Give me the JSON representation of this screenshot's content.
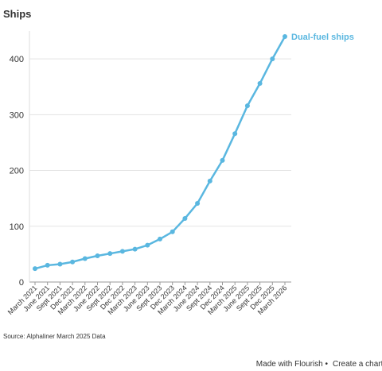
{
  "chart_data": {
    "type": "line",
    "title": "Ships",
    "categories": [
      "March 2021",
      "June 2021",
      "Sept 2021",
      "Dec 2021",
      "March 2022",
      "June 2022",
      "Sept 2022",
      "Dec 2022",
      "March 2023",
      "June 2023",
      "Sept 2023",
      "Dec 2023",
      "March 2024",
      "June 2024",
      "Sept 2024",
      "Dec 2024",
      "March 2025",
      "June 2025",
      "Sept 2025",
      "Dec 2025",
      "March 2026"
    ],
    "series": [
      {
        "name": "Dual-fuel ships",
        "color": "#5ab7e0",
        "values": [
          24,
          30,
          32,
          36,
          42,
          47,
          51,
          55,
          59,
          66,
          77,
          90,
          114,
          141,
          181,
          218,
          266,
          316,
          356,
          400,
          440
        ]
      }
    ],
    "ylim": [
      0,
      450
    ],
    "yticks": [
      0,
      100,
      200,
      300,
      400
    ],
    "grid": true,
    "source": "Source: Alphaliner March 2025 Data"
  },
  "footer": {
    "made_with": "Made with Flourish •",
    "link": "Create a chart"
  }
}
